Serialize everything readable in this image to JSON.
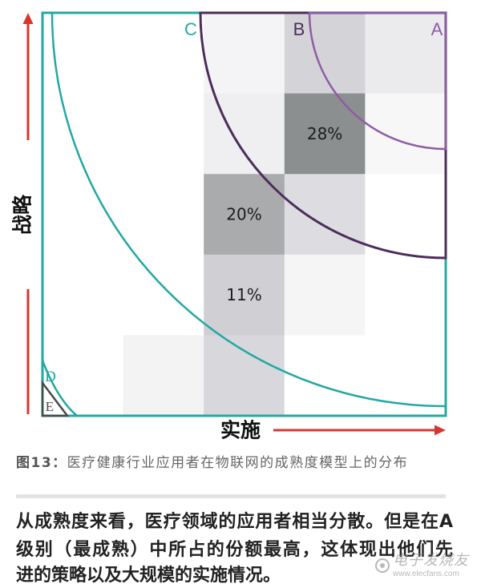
{
  "chart_data": {
    "type": "heatmap",
    "xlabel": "实施",
    "ylabel": "战略",
    "shades": [
      [
        "#ffffff",
        "#ffffff",
        "#f4f4f6",
        "#d4d4d8",
        "#ebebed"
      ],
      [
        "#ffffff",
        "#ffffff",
        "#efeff1",
        "#8b8f90",
        "#f7f7f8"
      ],
      [
        "#ffffff",
        "#ffffff",
        "#a9abad",
        "#dddde1",
        "#ffffff"
      ],
      [
        "#ffffff",
        "#ffffff",
        "#d0d0d4",
        "#f5f5f6",
        "#ffffff"
      ],
      [
        "#ffffff",
        "#f3f3f4",
        "#d8d8dc",
        "#ffffff",
        "#ffffff"
      ]
    ],
    "labels": [
      [
        null,
        null,
        null,
        null,
        null
      ],
      [
        null,
        null,
        null,
        "28%",
        null
      ],
      [
        null,
        null,
        "20%",
        null,
        null
      ],
      [
        null,
        null,
        "11%",
        null,
        null
      ],
      [
        null,
        null,
        null,
        null,
        null
      ]
    ],
    "zones": [
      {
        "label": "A",
        "color": "#8f5ca6"
      },
      {
        "label": "B",
        "color": "#4b2d5b"
      },
      {
        "label": "C",
        "color": "#24a8a3"
      },
      {
        "label": "D",
        "color": "#24a8a3"
      },
      {
        "label": "E",
        "color": "#4a4a4a"
      }
    ],
    "axis_color": "#d7362e"
  },
  "caption": {
    "label": "图13：",
    "text": "医疗健康行业应用者在物联网的成熟度模型上的分布"
  },
  "article": {
    "lines": [
      "从成熟度来看，医疗领域的应用者相当分散。但是在A",
      "级别（最成熟）中所占的份额最高，这体现出他们先",
      "进的策略以及大规模的实施情况。"
    ]
  },
  "watermark": {
    "icon": "elecfans-logo-icon",
    "name": "电子发烧友",
    "url": "www.elecfans.com"
  }
}
